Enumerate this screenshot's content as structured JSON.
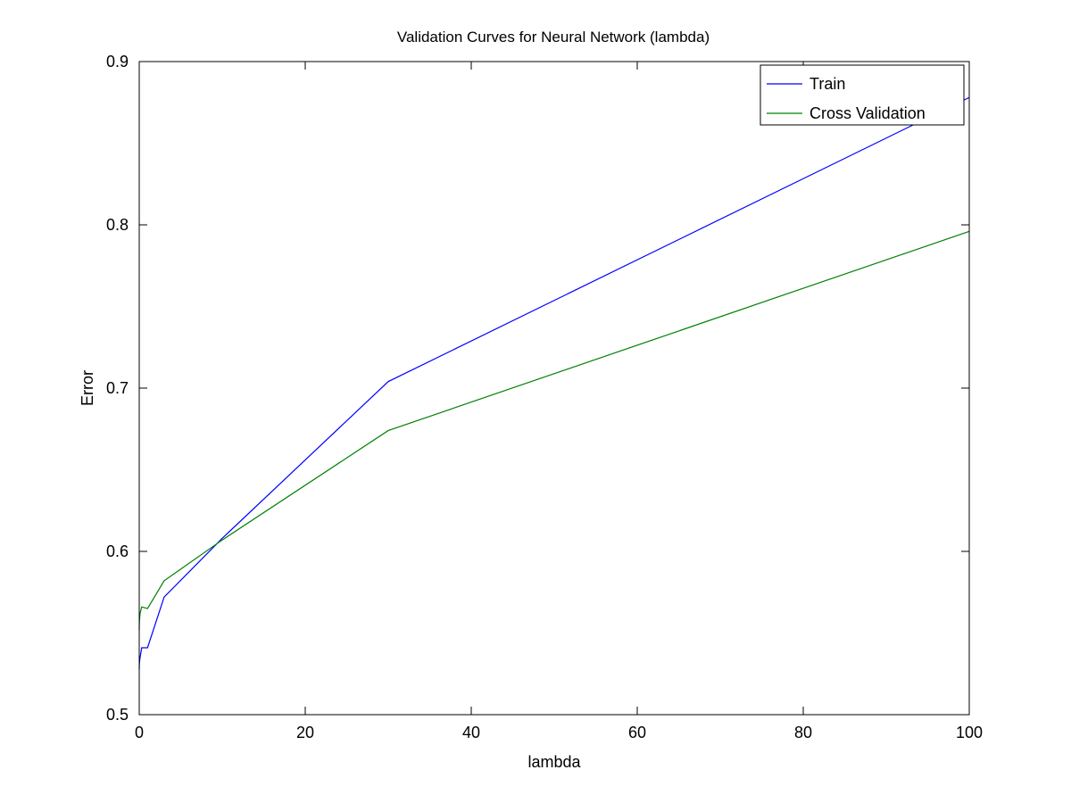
{
  "chart_data": {
    "type": "line",
    "title": "Validation Curves for Neural Network (lambda)",
    "xlabel": "lambda",
    "ylabel": "Error",
    "xlim": [
      0,
      100
    ],
    "ylim": [
      0.5,
      0.9
    ],
    "xticks": [
      0,
      20,
      40,
      60,
      80,
      100
    ],
    "yticks": [
      0.5,
      0.6,
      0.7,
      0.8,
      0.9
    ],
    "xtick_labels": [
      "0",
      "20",
      "40",
      "60",
      "80",
      "100"
    ],
    "ytick_labels": [
      "0.5",
      "0.6",
      "0.7",
      "0.8",
      "0.9"
    ],
    "grid": false,
    "legend_position": "top-right",
    "x": [
      0,
      0.001,
      0.003,
      0.01,
      0.03,
      0.1,
      0.3,
      1,
      3,
      10,
      30,
      100
    ],
    "series": [
      {
        "name": "Train",
        "color": "#0000ff",
        "values": [
          0.528,
          0.528,
          0.529,
          0.53,
          0.532,
          0.535,
          0.541,
          0.541,
          0.572,
          0.608,
          0.704,
          0.878
        ]
      },
      {
        "name": "Cross Validation",
        "color": "#008000",
        "values": [
          0.552,
          0.552,
          0.553,
          0.555,
          0.558,
          0.562,
          0.566,
          0.565,
          0.582,
          0.607,
          0.674,
          0.796
        ]
      }
    ]
  }
}
